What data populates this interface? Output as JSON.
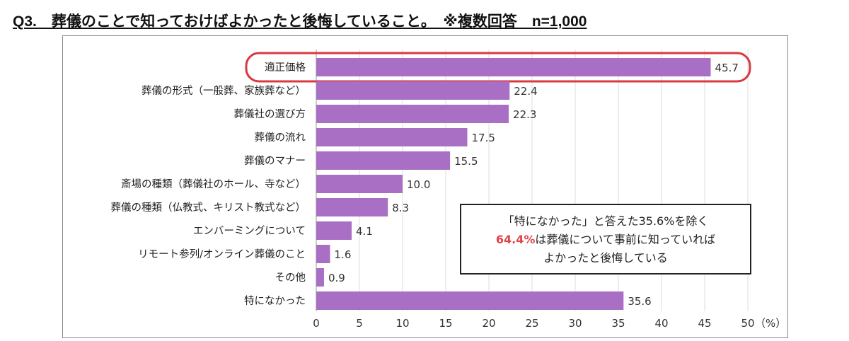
{
  "title": "Q3.　葬儀のことで知っておけばよかったと後悔していること。　※複数回答　n=1,000",
  "note": {
    "line1": "「特になかった」と答えた35.6%を除く",
    "highlight": "64.4%",
    "line2_rest": "は葬儀について事前に知っていれば",
    "line3": "よかったと後悔している"
  },
  "colors": {
    "bar": "#a96fc4",
    "highlight_outline": "#d9383f",
    "note_highlight": "#e0454a"
  },
  "chart_data": {
    "type": "bar",
    "orientation": "horizontal",
    "categories": [
      "適正価格",
      "葬儀の形式（一般葬、家族葬など）",
      "葬儀社の選び方",
      "葬儀の流れ",
      "葬儀のマナー",
      "斎場の種類（葬儀社のホール、寺など）",
      "葬儀の種類（仏教式、キリスト教式など）",
      "エンバーミングについて",
      "リモート参列/オンライン葬儀のこと",
      "その他",
      "特になかった"
    ],
    "values": [
      45.7,
      22.4,
      22.3,
      17.5,
      15.5,
      10.0,
      8.3,
      4.1,
      1.6,
      0.9,
      35.6
    ],
    "value_labels": [
      "45.7",
      "22.4",
      "22.3",
      "17.5",
      "15.5",
      "10.0",
      "8.3",
      "4.1",
      "1.6",
      "0.9",
      "35.6"
    ],
    "xlim": [
      0,
      50
    ],
    "xticks": [
      "0",
      "5",
      "10",
      "15",
      "20",
      "25",
      "30",
      "35",
      "40",
      "45",
      "50"
    ],
    "xunit": "（%）",
    "grid": "vertical",
    "highlighted_category": "適正価格"
  }
}
